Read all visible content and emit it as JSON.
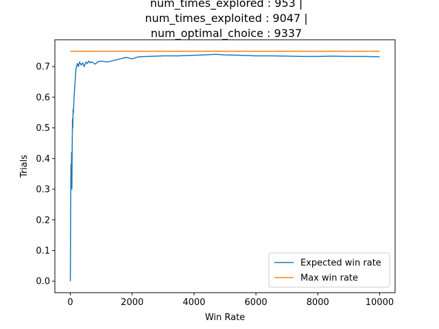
{
  "chart_data": {
    "type": "line",
    "title": [
      "num_times_explored : 953 |",
      "num_times_exploited : 9047 |",
      "num_optimal_choice : 9337"
    ],
    "xlabel": "Win Rate",
    "ylabel": "Trials",
    "xlim": [
      -500,
      10500
    ],
    "ylim": [
      -0.0375,
      0.7875
    ],
    "xticks": [
      0,
      2000,
      4000,
      6000,
      8000,
      10000
    ],
    "xtick_labels": [
      "0",
      "2000",
      "4000",
      "6000",
      "8000",
      "10000"
    ],
    "yticks": [
      0.0,
      0.1,
      0.2,
      0.3,
      0.4,
      0.5,
      0.6,
      0.7
    ],
    "ytick_labels": [
      "0.0",
      "0.1",
      "0.2",
      "0.3",
      "0.4",
      "0.5",
      "0.6",
      "0.7"
    ],
    "grid": false,
    "legend_position": "lower-right",
    "series": [
      {
        "name": "Expected win rate",
        "color": "#1f77b4",
        "x": [
          0,
          5,
          10,
          20,
          30,
          40,
          50,
          60,
          70,
          80,
          90,
          100,
          120,
          140,
          160,
          180,
          200,
          230,
          260,
          300,
          350,
          400,
          450,
          500,
          550,
          600,
          650,
          700,
          800,
          900,
          1000,
          1200,
          1400,
          1600,
          1800,
          2000,
          2200,
          2500,
          3000,
          3500,
          4000,
          4300,
          4700,
          5000,
          5500,
          6000,
          6500,
          7000,
          7500,
          8000,
          8500,
          9000,
          9500,
          10000
        ],
        "y": [
          0.0,
          0.12,
          0.25,
          0.38,
          0.33,
          0.42,
          0.3,
          0.44,
          0.53,
          0.5,
          0.56,
          0.55,
          0.6,
          0.63,
          0.66,
          0.69,
          0.7,
          0.71,
          0.7,
          0.715,
          0.705,
          0.712,
          0.7,
          0.715,
          0.71,
          0.718,
          0.712,
          0.715,
          0.708,
          0.716,
          0.718,
          0.715,
          0.72,
          0.725,
          0.73,
          0.725,
          0.732,
          0.733,
          0.735,
          0.735,
          0.737,
          0.738,
          0.74,
          0.738,
          0.737,
          0.735,
          0.735,
          0.734,
          0.733,
          0.733,
          0.734,
          0.733,
          0.733,
          0.732
        ]
      },
      {
        "name": "Max win rate",
        "color": "#ff7f0e",
        "x": [
          0,
          10000
        ],
        "y": [
          0.75,
          0.75
        ]
      }
    ]
  }
}
